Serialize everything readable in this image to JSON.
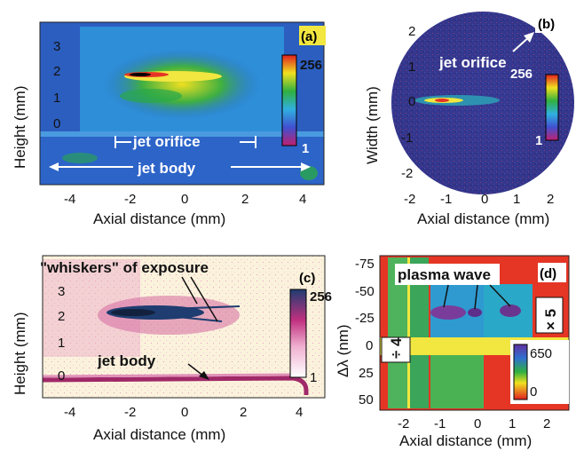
{
  "panels": {
    "a": {
      "label": "(a)",
      "xlabel": "Axial distance (mm)",
      "ylabel": "Height (mm)",
      "xticks": [
        "-4",
        "-2",
        "0",
        "2",
        "4"
      ],
      "yticks": [
        "3",
        "2",
        "1",
        "0"
      ],
      "colorbar_max": "256",
      "colorbar_min": "1",
      "annotations": [
        "jet orifice",
        "jet body"
      ]
    },
    "b": {
      "label": "(b)",
      "xlabel": "Axial distance (mm)",
      "ylabel": "Width (mm)",
      "xticks": [
        "-2",
        "-1",
        "0",
        "1",
        "2"
      ],
      "yticks": [
        "2",
        "1",
        "0",
        "-1",
        "-2"
      ],
      "colorbar_max": "256",
      "colorbar_min": "1",
      "annotations": [
        "jet orifice"
      ]
    },
    "c": {
      "label": "(c)",
      "xlabel": "Axial distance (mm)",
      "ylabel": "Height (mm)",
      "xticks": [
        "-4",
        "-2",
        "0",
        "2",
        "4"
      ],
      "yticks": [
        "3",
        "2",
        "1",
        "0"
      ],
      "colorbar_max": "256",
      "colorbar_min": "1",
      "annotations": [
        "\"whiskers\" of exposure",
        "jet body"
      ]
    },
    "d": {
      "label": "(d)",
      "xlabel": "Axial distance (mm)",
      "ylabel": "Δλ (nm)",
      "xticks": [
        "-2",
        "-1",
        "0",
        "1",
        "2"
      ],
      "yticks": [
        "-75",
        "-50",
        "-25",
        "0",
        "25",
        "50"
      ],
      "colorbar_max": "650",
      "colorbar_min": "0",
      "annotations": [
        "plasma wave",
        "÷ 4",
        "× 5"
      ]
    }
  },
  "colors": {
    "jet_map_bg": "#2b66c6",
    "heat_red": "#e53524",
    "heat_green": "#2aa84a",
    "neg_pink": "#c0337a",
    "neg_bg": "#fbf2dc"
  }
}
